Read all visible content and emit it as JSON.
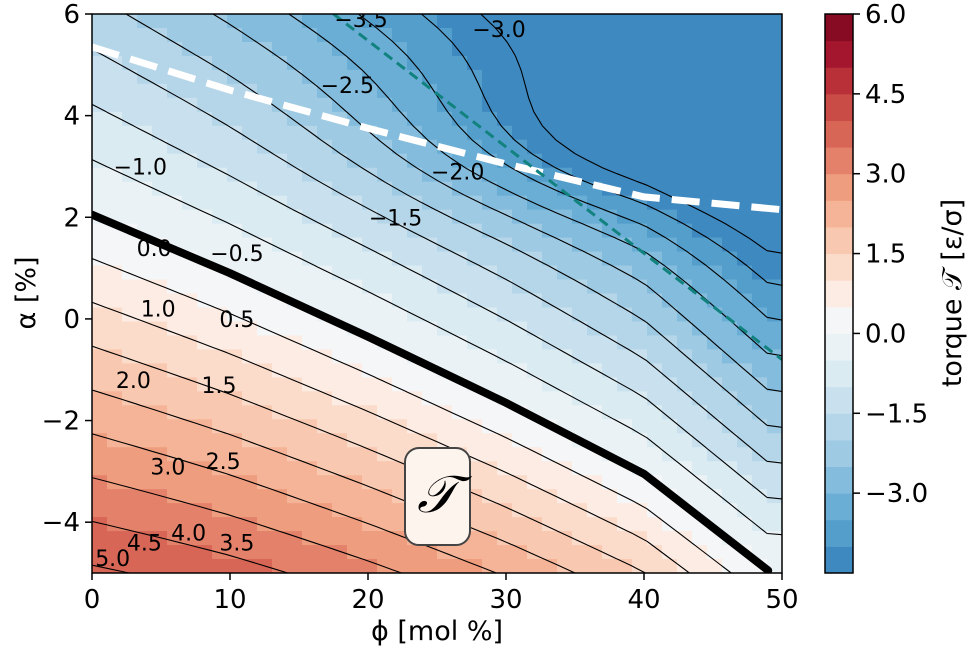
{
  "chart_data": {
    "type": "heatmap",
    "xlabel": "ϕ  [mol %]",
    "ylabel": "α  [%]",
    "xlim": [
      0,
      50
    ],
    "ylim": [
      -5,
      6
    ],
    "xticks": [
      "0",
      "10",
      "20",
      "30",
      "40",
      "50"
    ],
    "yticks": [
      "−4",
      "−2",
      "0",
      "2",
      "4",
      "6"
    ],
    "colorbar": {
      "label": "torque 𝒯 [ε/σ]",
      "range": [
        -4.5,
        6.0
      ],
      "ticks": [
        "6.0",
        "4.5",
        "3.0",
        "1.5",
        "0.0",
        "−1.5",
        "−3.0"
      ],
      "levels": [
        -4.5,
        -4.0,
        -3.5,
        -3.0,
        -2.5,
        -2.0,
        -1.5,
        -1.0,
        -0.5,
        0.0,
        0.5,
        1.0,
        1.5,
        2.0,
        2.5,
        3.0,
        3.5,
        4.0,
        4.5,
        5.0,
        5.5,
        6.0
      ],
      "colors": [
        "#3f89c1",
        "#549ecc",
        "#6aaed5",
        "#84bcdd",
        "#9fcae3",
        "#b5d6e9",
        "#c9e1ee",
        "#daebf2",
        "#eaf2f6",
        "#f5f6f7",
        "#fcece4",
        "#fbdccb",
        "#f9c8b0",
        "#f5b497",
        "#ee9d7f",
        "#e4816a",
        "#d76656",
        "#c94c47",
        "#b93039",
        "#a3162d",
        "#880b24"
      ]
    },
    "contour_labels": [
      {
        "text": "−3.5",
        "x": 19.5,
        "y": 5.9
      },
      {
        "text": "−3.0",
        "x": 29.5,
        "y": 5.7
      },
      {
        "text": "−2.5",
        "x": 18.5,
        "y": 4.6
      },
      {
        "text": "−2.0",
        "x": 26.5,
        "y": 2.9
      },
      {
        "text": "−1.5",
        "x": 22.0,
        "y": 2.0
      },
      {
        "text": "−1.0",
        "x": 3.5,
        "y": 3.0
      },
      {
        "text": "−0.5",
        "x": 10.5,
        "y": 1.3
      },
      {
        "text": "0.0",
        "x": 4.5,
        "y": 1.4
      },
      {
        "text": "0.5",
        "x": 10.5,
        "y": 0.0
      },
      {
        "text": "1.0",
        "x": 4.8,
        "y": 0.2
      },
      {
        "text": "1.5",
        "x": 9.2,
        "y": -1.3
      },
      {
        "text": "2.0",
        "x": 3.0,
        "y": -1.2
      },
      {
        "text": "2.5",
        "x": 9.5,
        "y": -2.8
      },
      {
        "text": "3.0",
        "x": 5.5,
        "y": -2.9
      },
      {
        "text": "3.5",
        "x": 10.5,
        "y": -4.4
      },
      {
        "text": "4.0",
        "x": 7.0,
        "y": -4.2
      },
      {
        "text": "4.5",
        "x": 3.8,
        "y": -4.4
      },
      {
        "text": "5.0",
        "x": 1.5,
        "y": -4.7
      }
    ],
    "zero_contour": [
      [
        0,
        2.05
      ],
      [
        10,
        0.9
      ],
      [
        20,
        -0.35
      ],
      [
        30,
        -1.65
      ],
      [
        40,
        -3.05
      ],
      [
        49,
        -4.95
      ]
    ],
    "white_dashed_curve": [
      [
        0,
        5.35
      ],
      [
        10,
        4.5
      ],
      [
        20,
        3.75
      ],
      [
        30,
        3.05
      ],
      [
        40,
        2.4
      ],
      [
        50,
        2.15
      ]
    ],
    "teal_dashed_line": [
      [
        17.5,
        6.0
      ],
      [
        50,
        -0.8
      ]
    ],
    "annotation": {
      "text": "𝒯",
      "x": 25.0,
      "y": -3.6
    }
  }
}
